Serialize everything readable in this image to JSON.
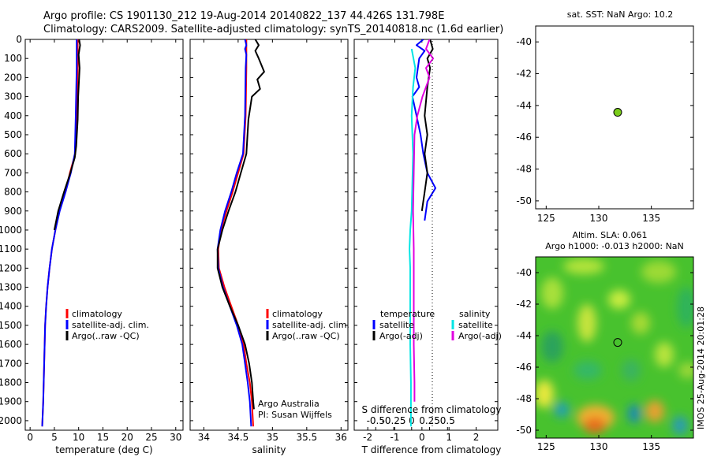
{
  "header": {
    "line1": "Argo profile: CS 1901130_212 19-Aug-2014 20140822_137 44.426S 131.798E",
    "line2": "Climatology: CARS2009. Satellite-adjusted climatology: synTS_20140818.nc (1.6d earlier)"
  },
  "side_stamp": "IMOS 25-Aug-2014 20:01:28",
  "credits": {
    "line1": "Argo Australia",
    "line2": "PI: Susan Wijffels"
  },
  "colors": {
    "climatology": "#ff0000",
    "satellite": "#0000ff",
    "argo": "#000000",
    "sal_satellite": "#00e5e5",
    "sal_argo": "#e000e0",
    "marker": "#7acc1a"
  },
  "chart_data": [
    {
      "type": "line",
      "xlabel": "temperature (deg C)",
      "xlim": [
        -1,
        31.5
      ],
      "ylim": [
        0,
        2050
      ],
      "y_inverted": true,
      "xticks": [
        0,
        5,
        10,
        15,
        20,
        25,
        30
      ],
      "yticks": [
        0,
        100,
        200,
        300,
        400,
        500,
        600,
        700,
        800,
        900,
        1000,
        1100,
        1200,
        1300,
        1400,
        1500,
        1600,
        1700,
        1800,
        1900,
        2000
      ],
      "legend": [
        "climatology",
        "satellite-adj. clim.",
        "Argo(..raw -QC)"
      ],
      "series": [
        {
          "name": "climatology",
          "color": "#ff0000",
          "points": [
            [
              9.8,
              0
            ],
            [
              9.8,
              150
            ],
            [
              9.6,
              400
            ],
            [
              9.3,
              600
            ],
            [
              8.2,
              700
            ],
            [
              7.3,
              800
            ],
            [
              6.0,
              900
            ],
            [
              5.2,
              1000
            ],
            [
              4.5,
              1100
            ],
            [
              4.0,
              1200
            ],
            [
              3.6,
              1300
            ],
            [
              3.3,
              1400
            ],
            [
              3.1,
              1500
            ],
            [
              2.9,
              1700
            ],
            [
              2.7,
              1900
            ],
            [
              2.5,
              2030
            ]
          ]
        },
        {
          "name": "satellite-adj. clim.",
          "color": "#0000ff",
          "points": [
            [
              9.6,
              0
            ],
            [
              9.6,
              150
            ],
            [
              9.4,
              400
            ],
            [
              9.2,
              600
            ],
            [
              8.4,
              700
            ],
            [
              7.3,
              800
            ],
            [
              6.1,
              900
            ],
            [
              5.2,
              1000
            ],
            [
              4.5,
              1100
            ],
            [
              4.0,
              1200
            ],
            [
              3.6,
              1300
            ],
            [
              3.3,
              1400
            ],
            [
              3.1,
              1500
            ],
            [
              2.9,
              1700
            ],
            [
              2.7,
              1900
            ],
            [
              2.5,
              2030
            ]
          ]
        },
        {
          "name": "Argo(..raw -QC)",
          "color": "#000000",
          "points": [
            [
              10.1,
              0
            ],
            [
              10.3,
              30
            ],
            [
              10.0,
              80
            ],
            [
              10.2,
              150
            ],
            [
              9.9,
              300
            ],
            [
              9.8,
              420
            ],
            [
              9.5,
              560
            ],
            [
              9.2,
              620
            ],
            [
              8.3,
              700
            ],
            [
              7.0,
              800
            ],
            [
              5.8,
              900
            ],
            [
              5.0,
              1000
            ]
          ]
        }
      ]
    },
    {
      "type": "line",
      "xlabel": "salinity",
      "xlim": [
        33.8,
        36.1
      ],
      "ylim": [
        0,
        2050
      ],
      "y_inverted": true,
      "xticks": [
        34,
        34.5,
        35,
        35.5,
        36
      ],
      "legend": [
        "climatology",
        "satellite-adj. clim.",
        "Argo(..raw -QC)"
      ],
      "series": [
        {
          "name": "climatology",
          "color": "#ff0000",
          "points": [
            [
              34.62,
              0
            ],
            [
              34.62,
              150
            ],
            [
              34.61,
              400
            ],
            [
              34.58,
              600
            ],
            [
              34.5,
              700
            ],
            [
              34.42,
              800
            ],
            [
              34.33,
              900
            ],
            [
              34.25,
              1000
            ],
            [
              34.21,
              1100
            ],
            [
              34.22,
              1200
            ],
            [
              34.3,
              1300
            ],
            [
              34.4,
              1400
            ],
            [
              34.5,
              1500
            ],
            [
              34.58,
              1600
            ],
            [
              34.62,
              1700
            ],
            [
              34.67,
              1800
            ],
            [
              34.7,
              1900
            ],
            [
              34.72,
              2030
            ]
          ]
        },
        {
          "name": "satellite-adj. clim.",
          "color": "#0000ff",
          "points": [
            [
              34.6,
              0
            ],
            [
              34.62,
              30
            ],
            [
              34.6,
              50
            ],
            [
              34.62,
              80
            ],
            [
              34.61,
              150
            ],
            [
              34.6,
              400
            ],
            [
              34.57,
              600
            ],
            [
              34.48,
              700
            ],
            [
              34.4,
              800
            ],
            [
              34.31,
              900
            ],
            [
              34.24,
              1000
            ],
            [
              34.2,
              1100
            ],
            [
              34.21,
              1200
            ],
            [
              34.28,
              1300
            ],
            [
              34.38,
              1400
            ],
            [
              34.48,
              1500
            ],
            [
              34.56,
              1600
            ],
            [
              34.6,
              1700
            ],
            [
              34.64,
              1800
            ],
            [
              34.67,
              1900
            ],
            [
              34.69,
              2030
            ]
          ]
        },
        {
          "name": "Argo(..raw -QC)",
          "color": "#000000",
          "points": [
            [
              34.75,
              0
            ],
            [
              34.8,
              30
            ],
            [
              34.75,
              60
            ],
            [
              34.8,
              100
            ],
            [
              34.88,
              170
            ],
            [
              34.78,
              210
            ],
            [
              34.82,
              260
            ],
            [
              34.7,
              300
            ],
            [
              34.65,
              420
            ],
            [
              34.62,
              600
            ],
            [
              34.54,
              700
            ],
            [
              34.46,
              800
            ],
            [
              34.36,
              900
            ],
            [
              34.27,
              1000
            ],
            [
              34.2,
              1100
            ],
            [
              34.2,
              1200
            ],
            [
              34.27,
              1300
            ],
            [
              34.38,
              1400
            ],
            [
              34.5,
              1500
            ],
            [
              34.6,
              1600
            ],
            [
              34.66,
              1700
            ],
            [
              34.7,
              1800
            ],
            [
              34.72,
              1900
            ],
            [
              34.73,
              1940
            ]
          ]
        }
      ]
    },
    {
      "type": "line",
      "xlabel": "T difference from climatology",
      "x2label": "S difference from climatology",
      "xlim": [
        -2.5,
        2.8
      ],
      "x2lim": [
        -0.8,
        1.2
      ],
      "ylim": [
        0,
        2050
      ],
      "y_inverted": true,
      "xticks": [
        -2,
        -1,
        0,
        1,
        2
      ],
      "x2ticks": [
        -0.5,
        -0.25,
        0,
        0.25,
        0.5
      ],
      "x2ticklabels": [
        "-0.5",
        "-0.25",
        "0",
        "0.25",
        "0.5"
      ],
      "legend": {
        "temperature_title": "temperature",
        "salinity_title": "salinity",
        "entries": [
          "satellite",
          "Argo(-adj)",
          "satellite",
          "Argo(-adj)"
        ]
      },
      "series": [
        {
          "name": "satellite",
          "group": "temperature",
          "color": "#0000ff",
          "points": [
            [
              0.05,
              0
            ],
            [
              -0.2,
              30
            ],
            [
              0.1,
              60
            ],
            [
              -0.1,
              100
            ],
            [
              -0.2,
              200
            ],
            [
              -0.1,
              250
            ],
            [
              -0.35,
              300
            ],
            [
              -0.2,
              400
            ],
            [
              -0.05,
              500
            ],
            [
              0.05,
              600
            ],
            [
              0.2,
              700
            ],
            [
              0.5,
              780
            ],
            [
              0.2,
              850
            ],
            [
              0.1,
              950
            ]
          ]
        },
        {
          "name": "Argo(-adj)",
          "group": "temperature",
          "color": "#000000",
          "points": [
            [
              0.3,
              0
            ],
            [
              0.4,
              50
            ],
            [
              0.2,
              100
            ],
            [
              0.3,
              150
            ],
            [
              0.2,
              250
            ],
            [
              0.1,
              400
            ],
            [
              0.2,
              500
            ],
            [
              0.1,
              600
            ],
            [
              0.2,
              700
            ],
            [
              0.1,
              800
            ],
            [
              0.0,
              900
            ]
          ]
        },
        {
          "name": "satellite",
          "group": "salinity",
          "color": "#00e5e5",
          "points": [
            [
              0.0,
              50
            ],
            [
              0.05,
              150
            ],
            [
              0.02,
              250
            ],
            [
              0.0,
              400
            ],
            [
              0.02,
              600
            ],
            [
              0.0,
              900
            ],
            [
              -0.02,
              1000
            ],
            [
              -0.03,
              1100
            ],
            [
              -0.02,
              1200
            ],
            [
              -0.02,
              1400
            ],
            [
              -0.02,
              1600
            ],
            [
              -0.01,
              1800
            ],
            [
              -0.01,
              2030
            ]
          ]
        },
        {
          "name": "Argo(-adj)",
          "group": "salinity",
          "color": "#e000e0",
          "points": [
            [
              0.25,
              0
            ],
            [
              0.2,
              50
            ],
            [
              0.3,
              100
            ],
            [
              0.2,
              150
            ],
            [
              0.25,
              200
            ],
            [
              0.15,
              300
            ],
            [
              0.08,
              400
            ],
            [
              0.04,
              500
            ],
            [
              0.03,
              700
            ],
            [
              0.02,
              900
            ],
            [
              0.03,
              1100
            ],
            [
              0.03,
              1400
            ],
            [
              0.03,
              1600
            ],
            [
              0.04,
              1800
            ],
            [
              0.04,
              1900
            ]
          ]
        }
      ]
    },
    {
      "type": "scatter",
      "title": "sat. SST: NaN Argo: 10.2",
      "xlim": [
        124,
        139
      ],
      "ylim": [
        -50.5,
        -39
      ],
      "xticks": [
        125,
        130,
        135
      ],
      "yticks": [
        -40,
        -42,
        -44,
        -46,
        -48,
        -50
      ],
      "points": [
        {
          "x": 131.8,
          "y": -44.43
        }
      ]
    },
    {
      "type": "heatmap",
      "title_line1": "Altim. SLA: 0.061",
      "title_line2": "Argo h1000: -0.013 h2000: NaN",
      "xlim": [
        124,
        139
      ],
      "ylim": [
        -50.5,
        -39
      ],
      "xticks": [
        125,
        130,
        135
      ],
      "yticks": [
        -40,
        -42,
        -44,
        -46,
        -48,
        -50
      ],
      "points": [
        {
          "x": 131.8,
          "y": -44.43
        }
      ]
    }
  ]
}
